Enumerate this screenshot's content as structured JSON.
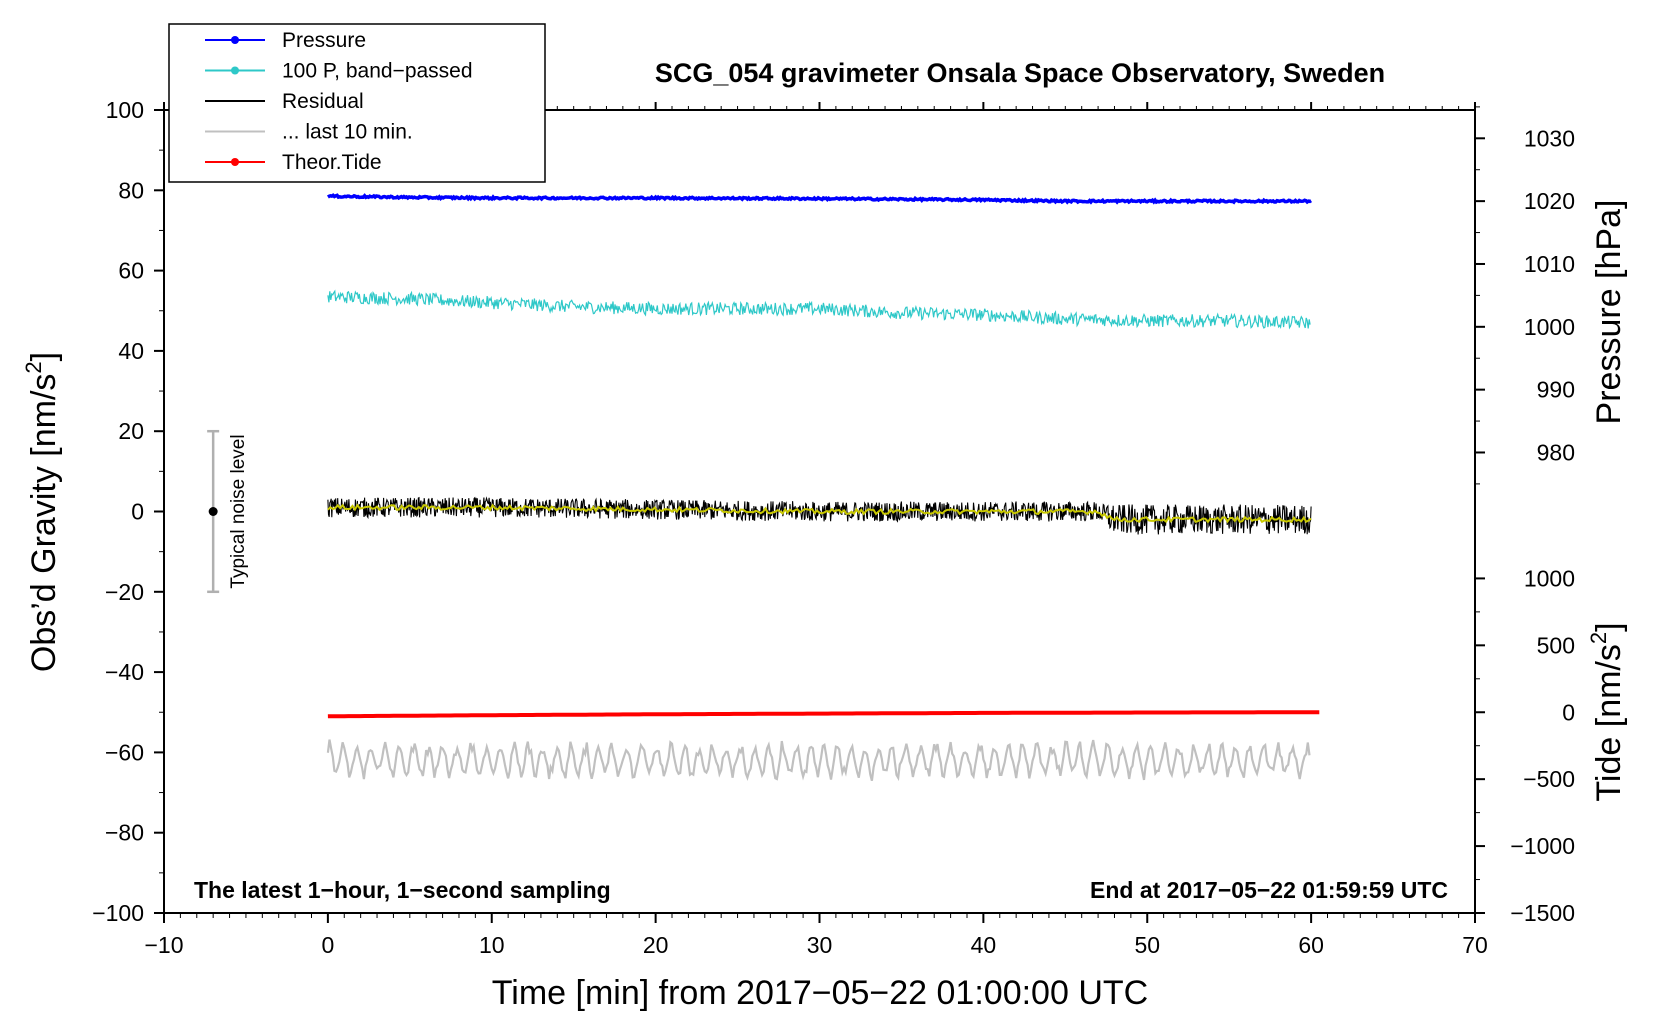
{
  "chart_data": {
    "type": "line",
    "title": "SCG_054 gravimeter Onsala Space Observatory, Sweden",
    "xlabel": "Time [min] from 2017−05−22 01:00:00 UTC",
    "ylabel_left": "Obs’d Gravity [nm/s²]",
    "ylabel_right_pressure": "Pressure [hPa]",
    "ylabel_right_tide": "Tide [nm/s²]",
    "xlim": [
      -10,
      70
    ],
    "ylim": [
      -100,
      100
    ],
    "x_ticks": [
      -10,
      0,
      10,
      20,
      30,
      40,
      50,
      60,
      70
    ],
    "x_tick_labels": [
      "−10",
      "0",
      "10",
      "20",
      "30",
      "40",
      "50",
      "60",
      "70"
    ],
    "y_ticks": [
      -100,
      -80,
      -60,
      -40,
      -20,
      0,
      20,
      40,
      60,
      80,
      100
    ],
    "y_tick_labels": [
      "−100",
      "−80",
      "−60",
      "−40",
      "−20",
      "0",
      "20",
      "40",
      "60",
      "80",
      "100"
    ],
    "pressure_axis": {
      "ticks": [
        980,
        990,
        1000,
        1010,
        1020,
        1030
      ],
      "tick_labels": [
        "980",
        "990",
        "1000",
        "1010",
        "1020",
        "1030"
      ],
      "map_to_left": {
        "hpa_a": 1000,
        "left_a": 46,
        "hpa_b": 1020,
        "left_b": 77.3
      }
    },
    "tide_axis": {
      "ticks": [
        -1500,
        -1000,
        -500,
        0,
        500,
        1000
      ],
      "tick_labels": [
        "−1500",
        "−1000",
        "−500",
        "0",
        "500",
        "1000"
      ],
      "map_to_left": {
        "tide_a": -1500,
        "left_a": -100,
        "tide_b": 0,
        "left_b": -50
      }
    },
    "series": [
      {
        "name": "Pressure",
        "color": "#0000ff",
        "role": "pressure",
        "x": [
          0,
          5,
          10,
          20,
          30,
          40,
          45,
          50,
          55,
          60
        ],
        "values_hpa": [
          1020.8,
          1020.6,
          1020.5,
          1020.5,
          1020.4,
          1020.2,
          1020.0,
          1020.0,
          1020.0,
          1020.0
        ],
        "noise_hpa": 0.15
      },
      {
        "name": "100 P, band−passed",
        "color": "#2ec8c8",
        "role": "bandpass",
        "x": [
          0,
          5,
          10,
          15,
          20,
          25,
          30,
          35,
          40,
          45,
          50,
          55,
          60
        ],
        "values": [
          53.5,
          53,
          52,
          51,
          50.5,
          50.5,
          50.5,
          49.5,
          49,
          48,
          47.5,
          47.5,
          47
        ],
        "noise": 1.6
      },
      {
        "name": "Residual",
        "color": "#000000",
        "role": "residual",
        "x": [
          0,
          10,
          20,
          30,
          40,
          45,
          47,
          48,
          50,
          55,
          60
        ],
        "values": [
          1,
          1,
          0.5,
          0,
          0,
          0,
          0,
          -2,
          -2,
          -2,
          -2
        ],
        "noise": 2.5
      },
      {
        "name": "... last 10 min.",
        "color": "#c0c0c0",
        "role": "last10",
        "x": [
          0,
          60
        ],
        "values": [
          -62,
          -62
        ],
        "amplitude": 4
      },
      {
        "name": "Theor.Tide",
        "color": "#ff0000",
        "role": "tide",
        "x": [
          0,
          10,
          20,
          30,
          40,
          50,
          60.5
        ],
        "values_nm_s2": [
          -30,
          -22,
          -15,
          -10,
          -5,
          -2,
          0
        ]
      },
      {
        "name": "smoothed residual",
        "color": "#c8c800",
        "role": "smooth",
        "x": [
          0,
          10,
          20,
          30,
          40,
          45,
          47,
          48,
          50,
          55,
          60
        ],
        "values": [
          1,
          1,
          0.5,
          0,
          0,
          0,
          0,
          -2,
          -2,
          -2,
          -2
        ],
        "noise": 0.6
      }
    ],
    "noise_bar": {
      "x": -7,
      "center": 0,
      "low": -20,
      "high": 20,
      "label": "Typical noise level"
    },
    "legend": {
      "position": "top-left",
      "entries": [
        {
          "label": "Pressure",
          "color": "#0000ff",
          "marker": true
        },
        {
          "label": "100 P, band−passed",
          "color": "#2ec8c8",
          "marker": true
        },
        {
          "label": "Residual",
          "color": "#000000",
          "marker": false
        },
        {
          "label": "... last 10 min.",
          "color": "#c0c0c0",
          "marker": false
        },
        {
          "label": "Theor.Tide",
          "color": "#ff0000",
          "marker": true
        }
      ]
    },
    "annotations": {
      "bottom_left": "The latest 1−hour, 1−second sampling",
      "bottom_right": "End at 2017−05−22 01:59:59 UTC"
    }
  }
}
